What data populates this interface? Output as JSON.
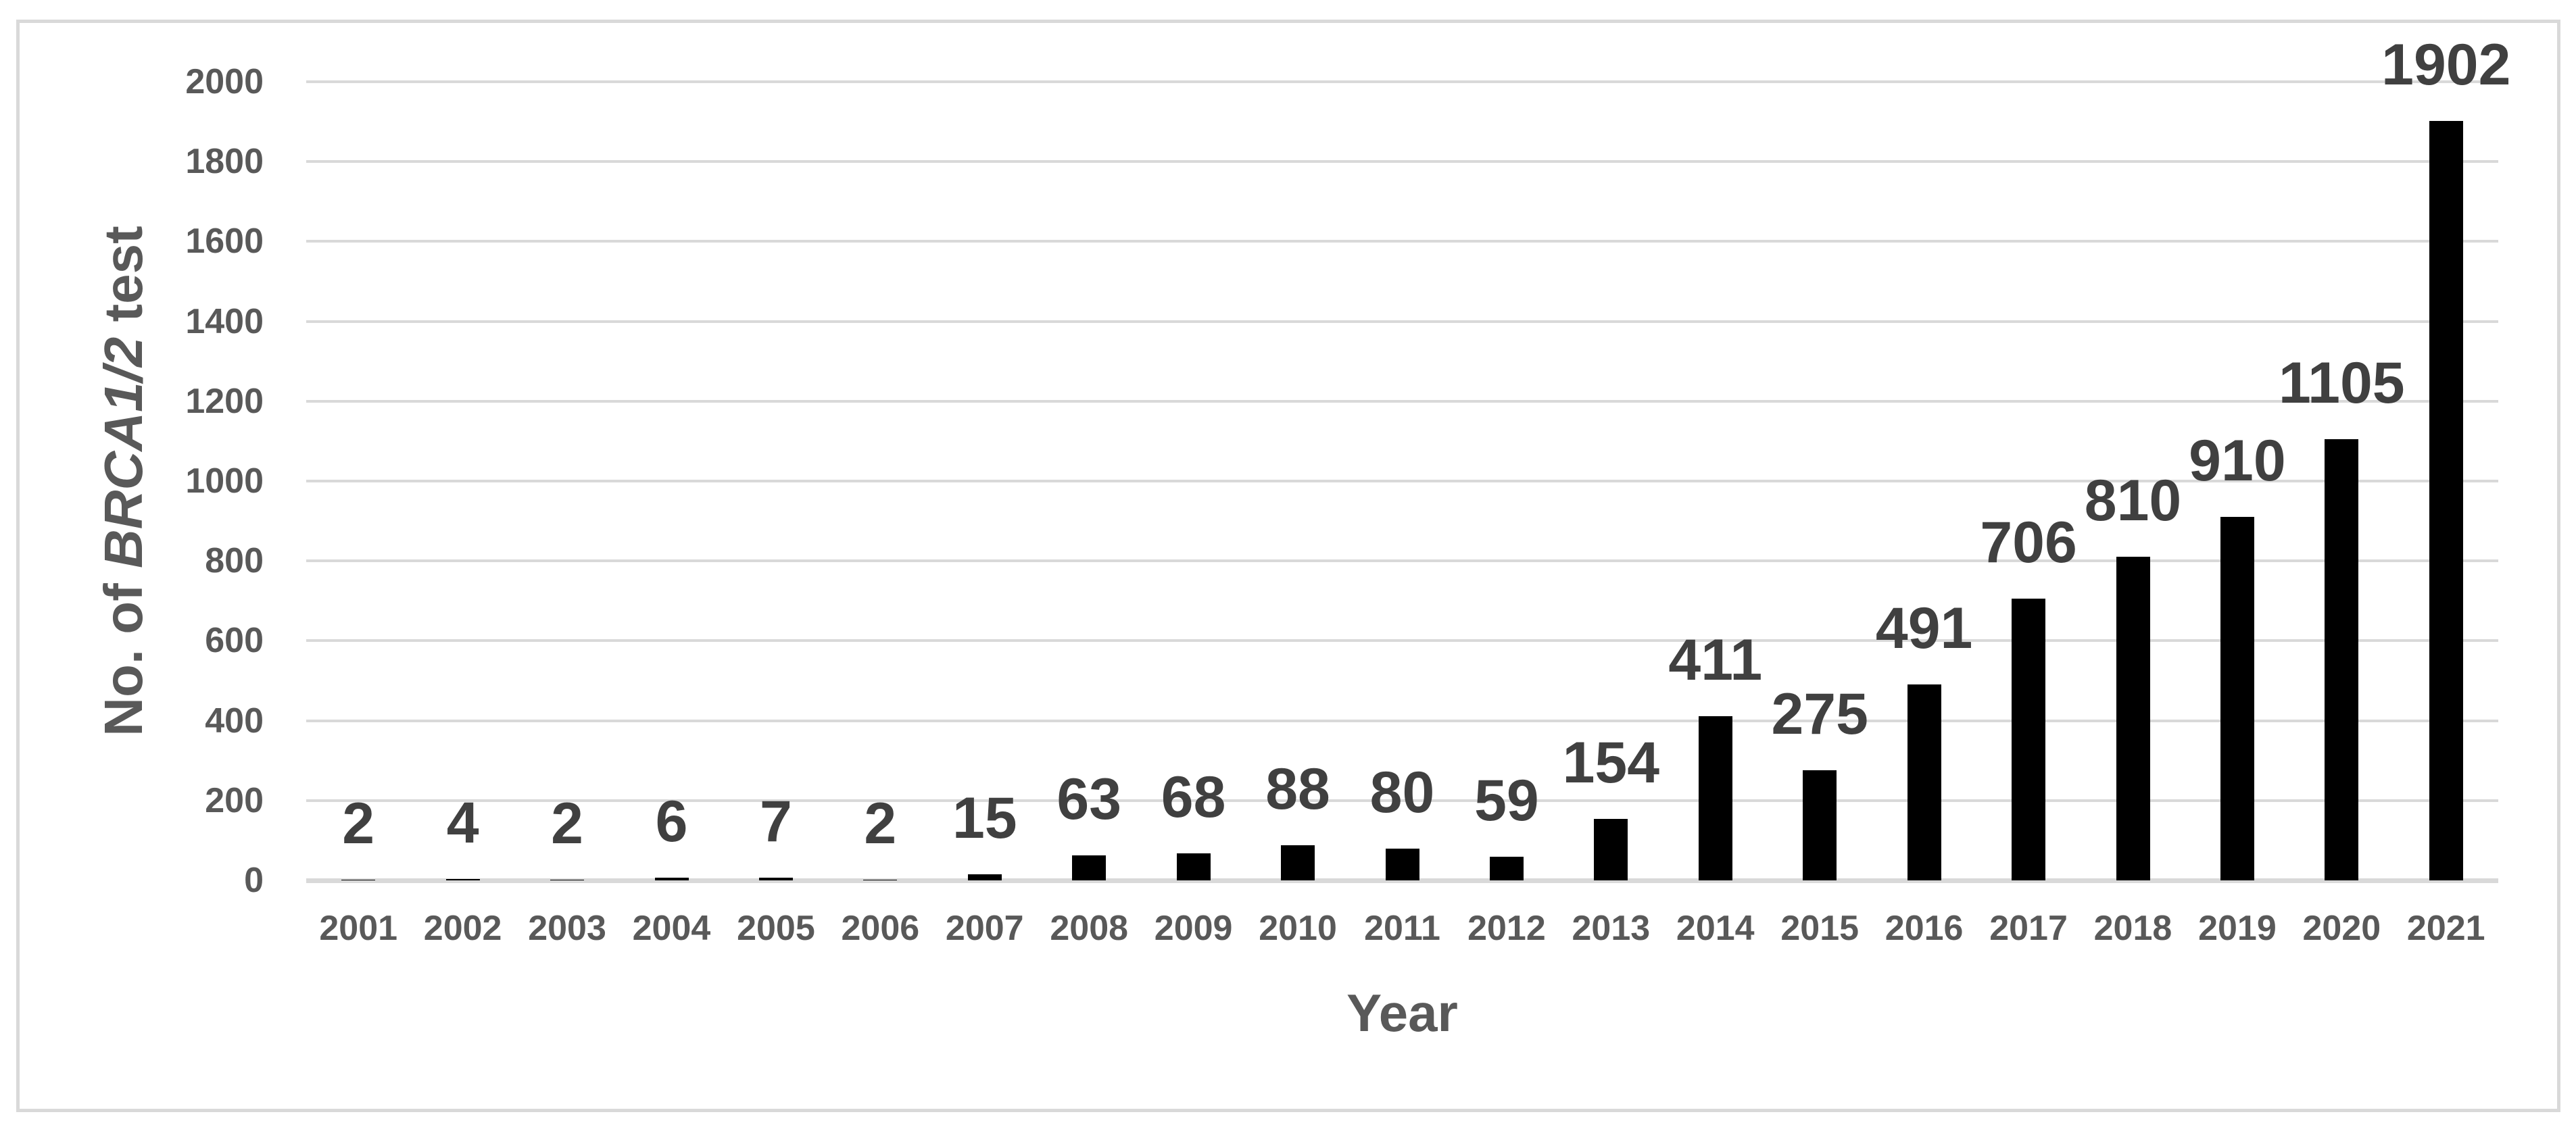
{
  "figure": {
    "background_color": "#ffffff",
    "border_color": "#d9d9d9"
  },
  "chart_data": {
    "type": "bar",
    "title": "",
    "categories": [
      "2001",
      "2002",
      "2003",
      "2004",
      "2005",
      "2006",
      "2007",
      "2008",
      "2009",
      "2010",
      "2011",
      "2012",
      "2013",
      "2014",
      "2015",
      "2016",
      "2017",
      "2018",
      "2019",
      "2020",
      "2021"
    ],
    "values": [
      2,
      4,
      2,
      6,
      7,
      2,
      15,
      63,
      68,
      88,
      80,
      59,
      154,
      411,
      275,
      491,
      706,
      810,
      910,
      1105,
      1902
    ],
    "xlabel": "Year",
    "ylabel": "No. of BRCA1/2 test",
    "ylabel_parts": [
      {
        "text": "No. of ",
        "italic": false
      },
      {
        "text": "BRCA1/2",
        "italic": true
      },
      {
        "text": " test",
        "italic": false
      }
    ],
    "ylim": [
      0,
      2000
    ],
    "ytick_step": 200,
    "yticks": [
      0,
      200,
      400,
      600,
      800,
      1000,
      1200,
      1400,
      1600,
      1800,
      2000
    ],
    "grid": true,
    "legend": "none",
    "data_labels_position": "outside-end",
    "bar_color": "#000000",
    "gridline_color": "#d9d9d9",
    "axis_text_color": "#595959",
    "data_label_color": "#404040"
  }
}
